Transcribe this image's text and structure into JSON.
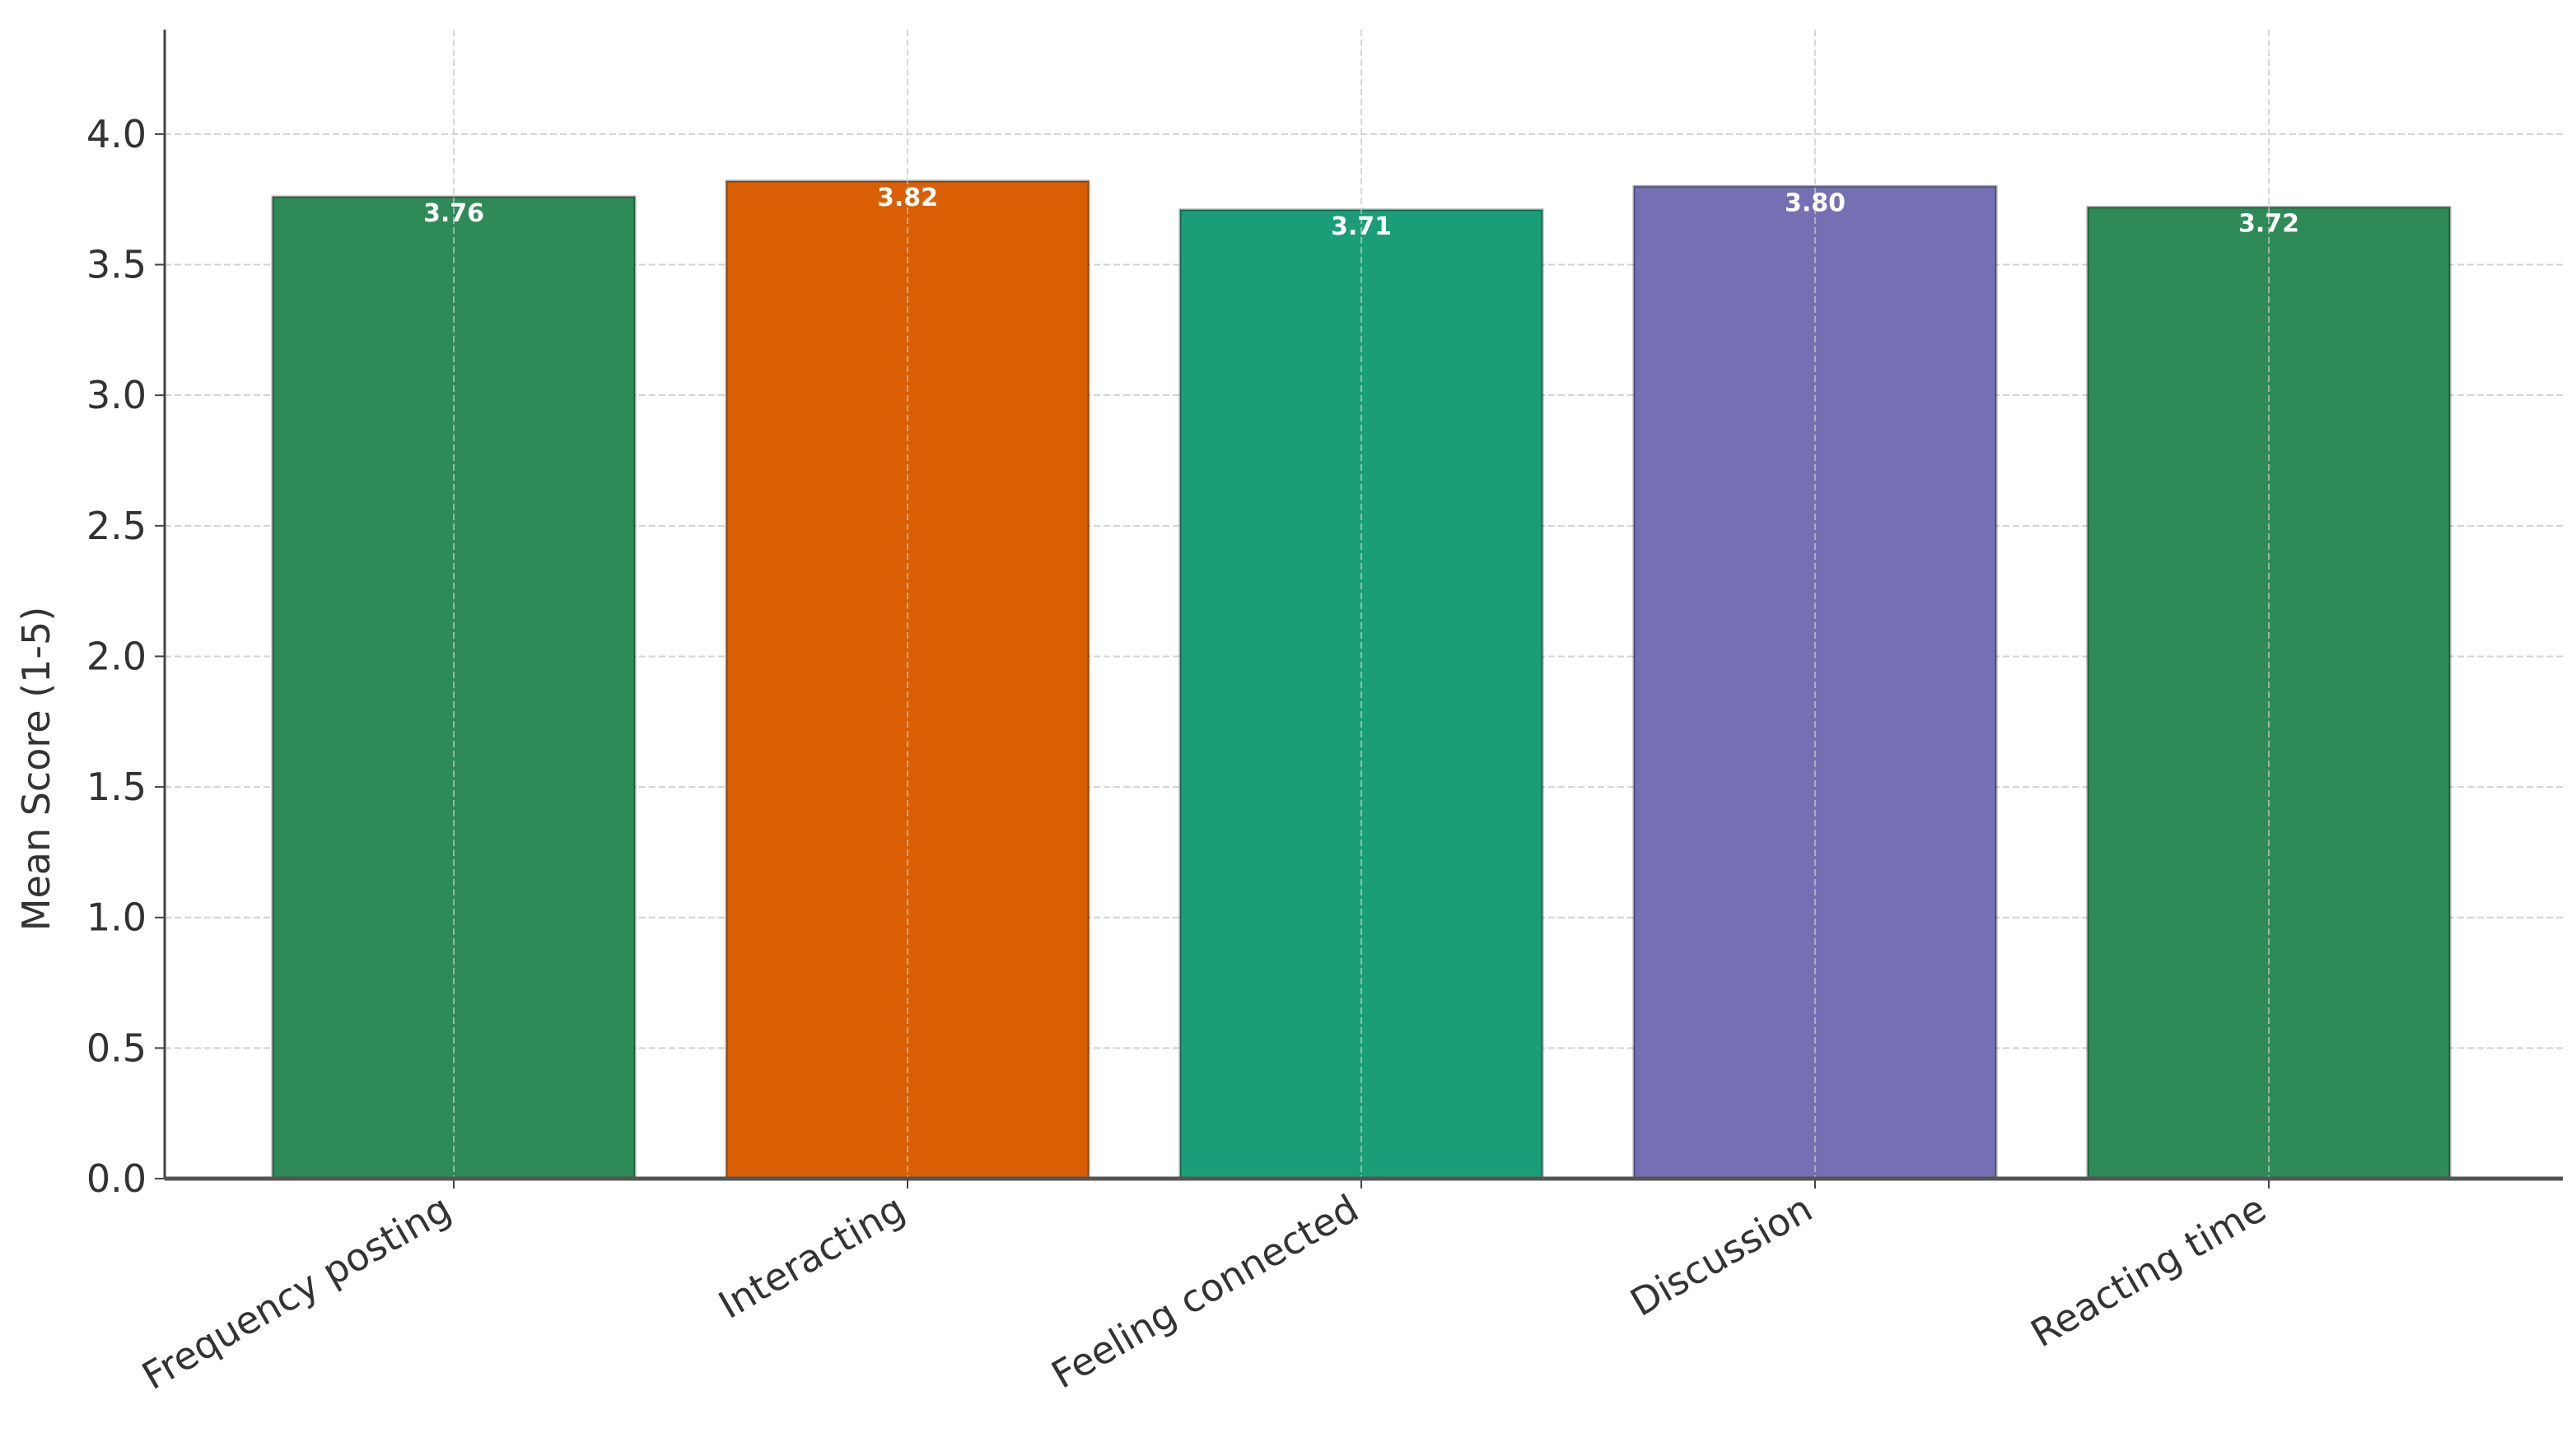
{
  "chart_data": {
    "type": "bar",
    "title": "",
    "xlabel": "",
    "ylabel": "Mean Score (1-5)",
    "categories": [
      "Frequency posting",
      "Interacting",
      "Feeling connected",
      "Discussion",
      "Reacting time"
    ],
    "values": [
      3.76,
      3.82,
      3.71,
      3.8,
      3.72
    ],
    "value_labels": [
      "3.76",
      "3.82",
      "3.71",
      "3.80",
      "3.72"
    ],
    "colors": [
      "#2e8b57",
      "#d95f02",
      "#1b9e77",
      "#7570b3",
      "#2e8b57"
    ],
    "ylim": [
      0,
      4.4
    ],
    "yticks": [
      0.0,
      0.5,
      1.0,
      1.5,
      2.0,
      2.5,
      3.0,
      3.5,
      4.0
    ],
    "ytick_labels": [
      "0.0",
      "0.5",
      "1.0",
      "1.5",
      "2.0",
      "2.5",
      "3.0",
      "3.5",
      "4.0"
    ],
    "grid": true,
    "legend": "none"
  }
}
